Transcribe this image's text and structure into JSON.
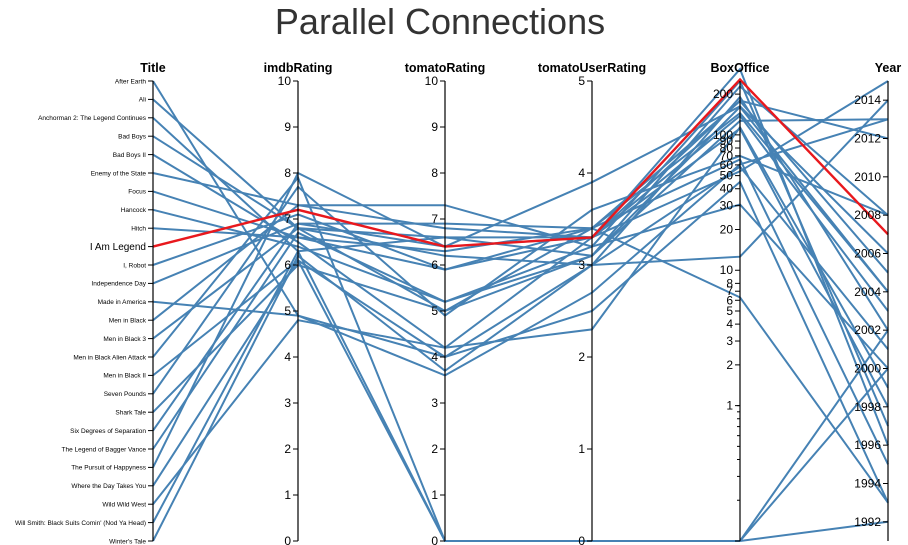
{
  "chart_data": {
    "type": "parallel-coordinates",
    "title": "Parallel Connections",
    "highlight": "I Am Legend",
    "colors": {
      "line": "#4682b4",
      "highlight": "#e8181d"
    },
    "dimensions": [
      {
        "name": "Title",
        "kind": "category"
      },
      {
        "name": "imdbRating",
        "kind": "linear",
        "domain": [
          0,
          10
        ],
        "ticks": [
          0,
          1,
          2,
          3,
          4,
          5,
          6,
          7,
          8,
          9,
          10
        ]
      },
      {
        "name": "tomatoRating",
        "kind": "linear",
        "domain": [
          0,
          10
        ],
        "ticks": [
          0,
          1,
          2,
          3,
          4,
          5,
          6,
          7,
          8,
          9,
          10
        ]
      },
      {
        "name": "tomatoUserRating",
        "kind": "linear",
        "domain": [
          0,
          5
        ],
        "ticks": [
          0,
          1,
          2,
          3,
          4,
          5
        ]
      },
      {
        "name": "BoxOffice",
        "kind": "log",
        "domain": [
          0.1,
          250
        ],
        "ticks": [
          1,
          2,
          3,
          4,
          5,
          6,
          7,
          8,
          10,
          20,
          30,
          40,
          50,
          60,
          70,
          80,
          90,
          100,
          200
        ]
      },
      {
        "name": "Year",
        "kind": "linear",
        "domain": [
          1991,
          2015
        ],
        "ticks": [
          1992,
          1994,
          1996,
          1998,
          2000,
          2002,
          2004,
          2006,
          2008,
          2010,
          2012,
          2014
        ]
      }
    ],
    "categories": [
      "After Earth",
      "Ali",
      "Anchorman 2: The Legend Continues",
      "Bad Boys",
      "Bad Boys II",
      "Enemy of the State",
      "Focus",
      "Hancock",
      "Hitch",
      "I Am Legend",
      "I, Robot",
      "Independence Day",
      "Made in America",
      "Men in Black",
      "Men in Black 3",
      "Men in Black Alien Attack",
      "Men in Black II",
      "Seven Pounds",
      "Shark Tale",
      "Six Degrees of Separation",
      "The Legend of Bagger Vance",
      "The Pursuit of Happyness",
      "Where the Day Takes You",
      "Wild Wild West",
      "Will Smith: Black Suits Comin' (Nod Ya Head)",
      "Winter's Tale"
    ],
    "rows": [
      {
        "title": "After Earth",
        "imdbRating": 4.9,
        "tomatoRating": 3.6,
        "tomatoUserRating": 2.7,
        "BoxOffice": 60.5,
        "Year": 2013
      },
      {
        "title": "Ali",
        "imdbRating": 6.8,
        "tomatoRating": 6.2,
        "tomatoUserRating": 3.0,
        "BoxOffice": 58.2,
        "Year": 2001
      },
      {
        "title": "Anchorman 2: The Legend Continues",
        "imdbRating": 6.3,
        "tomatoRating": 6.6,
        "tomatoUserRating": 3.1,
        "BoxOffice": 126.9,
        "Year": 2013
      },
      {
        "title": "Bad Boys",
        "imdbRating": 6.8,
        "tomatoRating": 5.0,
        "tomatoUserRating": 3.4,
        "BoxOffice": 65.8,
        "Year": 1995
      },
      {
        "title": "Bad Boys II",
        "imdbRating": 6.5,
        "tomatoRating": 4.2,
        "tomatoUserRating": 3.3,
        "BoxOffice": 138.4,
        "Year": 2003
      },
      {
        "title": "Enemy of the State",
        "imdbRating": 7.3,
        "tomatoRating": 6.8,
        "tomatoUserRating": 3.3,
        "BoxOffice": 111.5,
        "Year": 1998
      },
      {
        "title": "Focus",
        "imdbRating": 6.6,
        "tomatoRating": 5.9,
        "tomatoUserRating": 3.3,
        "BoxOffice": 53.8,
        "Year": 2015
      },
      {
        "title": "Hancock",
        "imdbRating": 6.4,
        "tomatoRating": 5.2,
        "tomatoUserRating": 3.1,
        "BoxOffice": 227.9,
        "Year": 2008
      },
      {
        "title": "Hitch",
        "imdbRating": 6.6,
        "tomatoRating": 6.3,
        "tomatoUserRating": 3.4,
        "BoxOffice": 177.6,
        "Year": 2005
      },
      {
        "title": "I Am Legend",
        "imdbRating": 7.2,
        "tomatoRating": 6.4,
        "tomatoUserRating": 3.3,
        "BoxOffice": 256.4,
        "Year": 2007
      },
      {
        "title": "I, Robot",
        "imdbRating": 7.1,
        "tomatoRating": 5.9,
        "tomatoUserRating": 3.4,
        "BoxOffice": 144.8,
        "Year": 2004
      },
      {
        "title": "Independence Day",
        "imdbRating": 6.9,
        "tomatoRating": 6.4,
        "tomatoUserRating": 3.3,
        "BoxOffice": 306.2,
        "Year": 1996
      },
      {
        "title": "Made in America",
        "imdbRating": 4.9,
        "tomatoRating": 4.0,
        "tomatoUserRating": 2.5,
        "BoxOffice": 44.9,
        "Year": 1993
      },
      {
        "title": "Men in Black",
        "imdbRating": 7.3,
        "tomatoRating": 7.3,
        "tomatoUserRating": 3.2,
        "BoxOffice": 250.1,
        "Year": 1997
      },
      {
        "title": "Men in Black 3",
        "imdbRating": 6.8,
        "tomatoRating": 6.6,
        "tomatoUserRating": 3.3,
        "BoxOffice": 179.0,
        "Year": 2012
      },
      {
        "title": "Men in Black Alien Attack",
        "imdbRating": 7.9,
        "tomatoRating": 0,
        "tomatoUserRating": 0,
        "BoxOffice": 0,
        "Year": 2000
      },
      {
        "title": "Men in Black II",
        "imdbRating": 6.1,
        "tomatoRating": 4.0,
        "tomatoUserRating": 3.0,
        "BoxOffice": 190.4,
        "Year": 2002
      },
      {
        "title": "Seven Pounds",
        "imdbRating": 7.7,
        "tomatoRating": 4.9,
        "tomatoUserRating": 3.6,
        "BoxOffice": 69.9,
        "Year": 2008
      },
      {
        "title": "Shark Tale",
        "imdbRating": 6.0,
        "tomatoRating": 5.0,
        "tomatoUserRating": 3.1,
        "BoxOffice": 160.8,
        "Year": 2004
      },
      {
        "title": "Six Degrees of Separation",
        "imdbRating": 6.9,
        "tomatoRating": 6.9,
        "tomatoUserRating": 3.4,
        "BoxOffice": 6.3,
        "Year": 1993
      },
      {
        "title": "The Legend of Bagger Vance",
        "imdbRating": 6.7,
        "tomatoRating": 5.2,
        "tomatoUserRating": 3.2,
        "BoxOffice": 30.6,
        "Year": 2000
      },
      {
        "title": "The Pursuit of Happyness",
        "imdbRating": 8.0,
        "tomatoRating": 6.4,
        "tomatoUserRating": 3.9,
        "BoxOffice": 162.6,
        "Year": 2006
      },
      {
        "title": "Where the Day Takes You",
        "imdbRating": 6.1,
        "tomatoRating": 0,
        "tomatoUserRating": 0,
        "BoxOffice": 0,
        "Year": 1992
      },
      {
        "title": "Wild Wild West",
        "imdbRating": 4.8,
        "tomatoRating": 4.2,
        "tomatoUserRating": 2.3,
        "BoxOffice": 113.8,
        "Year": 1999
      },
      {
        "title": "Will Smith: Black Suits Comin' (Nod Ya Head)",
        "imdbRating": 6.3,
        "tomatoRating": 0,
        "tomatoUserRating": 0,
        "BoxOffice": 0,
        "Year": 2002
      },
      {
        "title": "Winter's Tale",
        "imdbRating": 6.2,
        "tomatoRating": 3.7,
        "tomatoUserRating": 3.0,
        "BoxOffice": 12.6,
        "Year": 2014
      }
    ]
  }
}
